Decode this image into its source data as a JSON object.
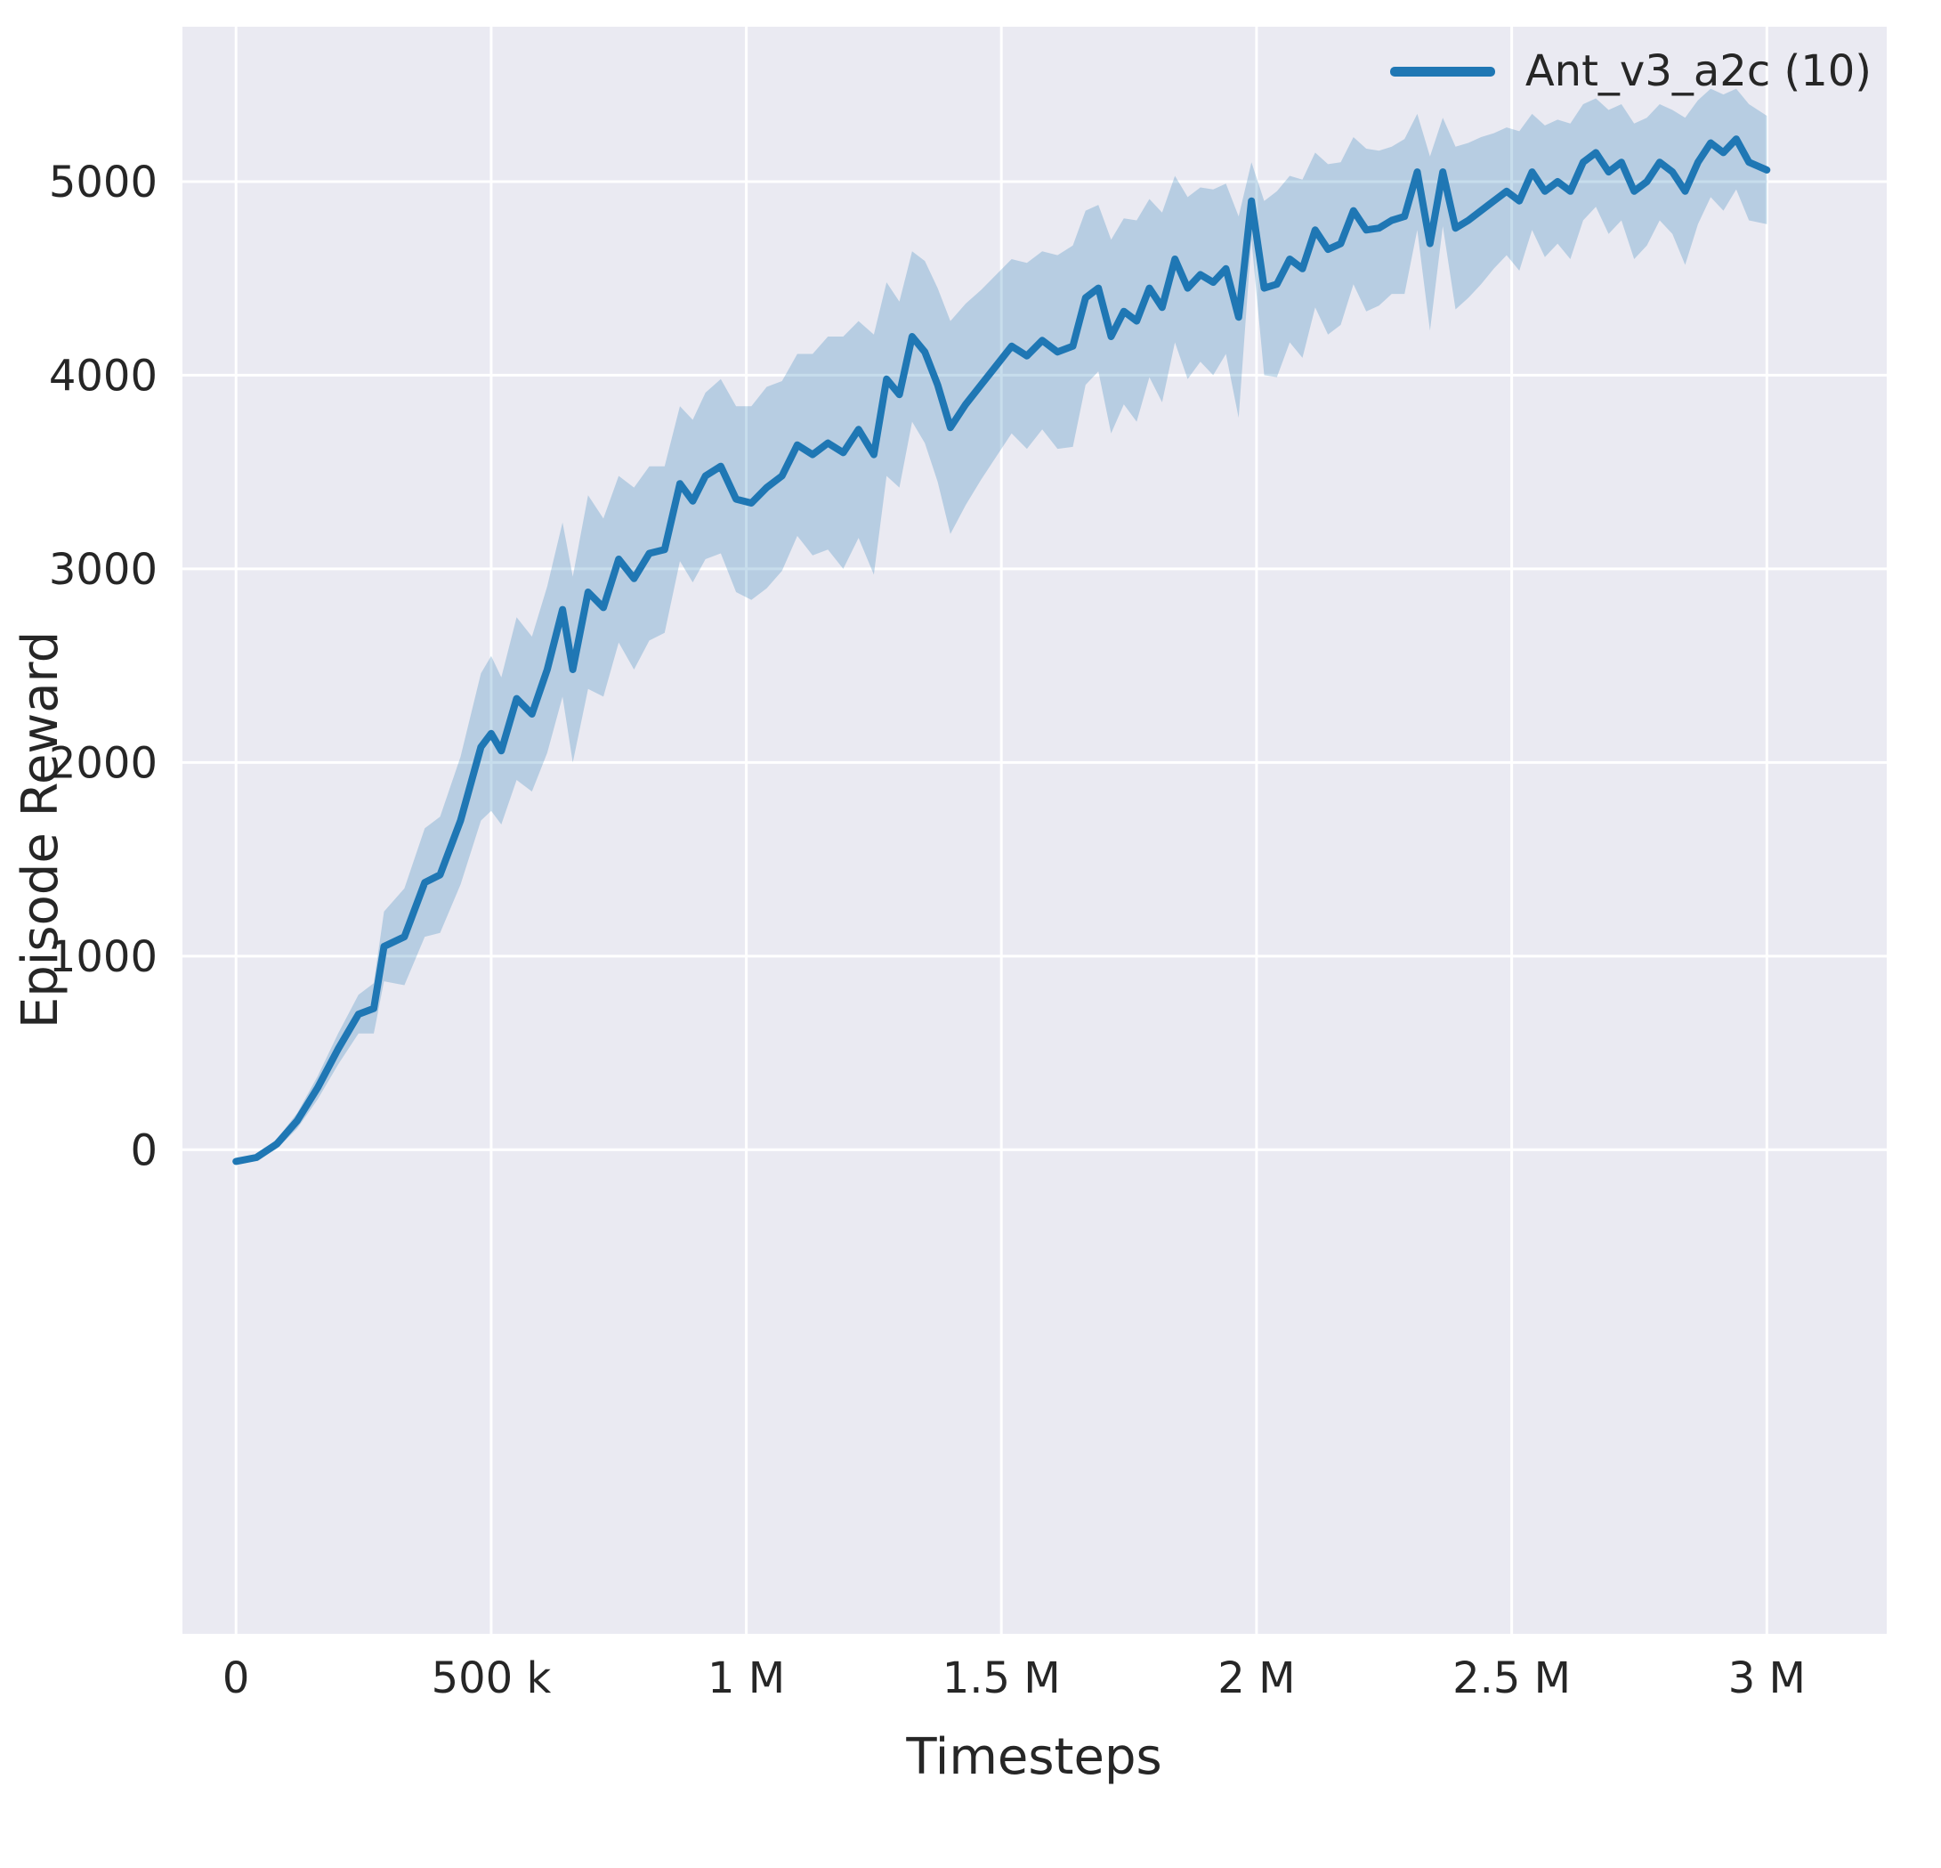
{
  "chart_data": {
    "type": "line",
    "title": "",
    "xlabel": "Timesteps",
    "ylabel": "Episode Reward",
    "grid": true,
    "legend_position": "upper right",
    "legend": [
      {
        "label": "Ant_v3_a2c (10)",
        "color": "#1f77b4"
      }
    ],
    "colors": {
      "plot_bg": "#eaeaf2",
      "grid": "#ffffff",
      "line": "#1f77b4",
      "band": "#1f77b4",
      "band_opacity": 0.25,
      "text": "#262626"
    },
    "xlim": [
      -105000,
      3235000
    ],
    "ylim": [
      -2500,
      5800
    ],
    "xticks": [
      {
        "v": 0,
        "label": "0"
      },
      {
        "v": 500000,
        "label": "500 k"
      },
      {
        "v": 1000000,
        "label": "1 M"
      },
      {
        "v": 1500000,
        "label": "1.5 M"
      },
      {
        "v": 2000000,
        "label": "2 M"
      },
      {
        "v": 2500000,
        "label": "2.5 M"
      },
      {
        "v": 3000000,
        "label": "3 M"
      }
    ],
    "yticks": [
      {
        "v": 0,
        "label": "0"
      },
      {
        "v": 1000,
        "label": "1000"
      },
      {
        "v": 2000,
        "label": "2000"
      },
      {
        "v": 3000,
        "label": "3000"
      },
      {
        "v": 4000,
        "label": "4000"
      },
      {
        "v": 5000,
        "label": "5000"
      }
    ],
    "series": [
      {
        "name": "Ant_v3_a2c (10)",
        "color": "#1f77b4",
        "x": [
          0,
          40000,
          80000,
          120000,
          160000,
          200000,
          240000,
          270000,
          290000,
          330000,
          370000,
          400000,
          440000,
          480000,
          500000,
          520000,
          550000,
          580000,
          610000,
          640000,
          660000,
          690000,
          720000,
          750000,
          780000,
          810000,
          840000,
          870000,
          895000,
          920000,
          950000,
          980000,
          1010000,
          1040000,
          1070000,
          1100000,
          1130000,
          1160000,
          1190000,
          1220000,
          1250000,
          1275000,
          1300000,
          1325000,
          1350000,
          1375000,
          1400000,
          1430000,
          1460000,
          1490000,
          1520000,
          1550000,
          1580000,
          1610000,
          1640000,
          1665000,
          1690000,
          1715000,
          1740000,
          1765000,
          1790000,
          1815000,
          1840000,
          1865000,
          1890000,
          1915000,
          1940000,
          1965000,
          1990000,
          2015000,
          2040000,
          2065000,
          2090000,
          2115000,
          2140000,
          2165000,
          2190000,
          2215000,
          2240000,
          2265000,
          2290000,
          2315000,
          2340000,
          2365000,
          2390000,
          2415000,
          2440000,
          2465000,
          2490000,
          2515000,
          2540000,
          2565000,
          2590000,
          2615000,
          2640000,
          2665000,
          2690000,
          2715000,
          2740000,
          2765000,
          2790000,
          2815000,
          2840000,
          2865000,
          2890000,
          2915000,
          2940000,
          2965000,
          3000000
        ],
        "mean": [
          -60,
          -40,
          30,
          150,
          320,
          520,
          700,
          730,
          1050,
          1100,
          1380,
          1420,
          1700,
          2080,
          2150,
          2060,
          2330,
          2250,
          2480,
          2790,
          2480,
          2880,
          2800,
          3050,
          2950,
          3080,
          3100,
          3440,
          3350,
          3480,
          3530,
          3360,
          3340,
          3420,
          3480,
          3640,
          3590,
          3650,
          3600,
          3720,
          3590,
          3980,
          3900,
          4200,
          4120,
          3950,
          3730,
          3850,
          3950,
          4050,
          4150,
          4100,
          4180,
          4120,
          4150,
          4400,
          4450,
          4200,
          4330,
          4280,
          4450,
          4350,
          4600,
          4450,
          4520,
          4480,
          4550,
          4300,
          4900,
          4450,
          4470,
          4600,
          4550,
          4750,
          4650,
          4680,
          4850,
          4750,
          4760,
          4800,
          4820,
          5050,
          4680,
          5050,
          4760,
          4800,
          4850,
          4900,
          4950,
          4900,
          5050,
          4950,
          5000,
          4950,
          5100,
          5150,
          5050,
          5100,
          4950,
          5000,
          5100,
          5050,
          4950,
          5100,
          5200,
          5150,
          5220,
          5100,
          5060
        ],
        "spread": [
          10,
          15,
          25,
          40,
          60,
          80,
          100,
          130,
          180,
          250,
          280,
          300,
          330,
          380,
          400,
          380,
          420,
          400,
          430,
          450,
          480,
          500,
          460,
          430,
          470,
          450,
          430,
          400,
          420,
          430,
          450,
          480,
          500,
          520,
          490,
          470,
          520,
          550,
          600,
          560,
          620,
          500,
          480,
          440,
          470,
          500,
          550,
          520,
          490,
          470,
          450,
          480,
          460,
          500,
          520,
          450,
          430,
          500,
          480,
          520,
          460,
          490,
          430,
          470,
          450,
          480,
          440,
          520,
          200,
          450,
          480,
          430,
          460,
          400,
          440,
          420,
          380,
          420,
          400,
          380,
          400,
          300,
          450,
          280,
          420,
          400,
          380,
          350,
          330,
          360,
          300,
          340,
          320,
          350,
          300,
          280,
          320,
          300,
          350,
          330,
          300,
          320,
          380,
          320,
          280,
          300,
          260,
          300,
          280
        ]
      }
    ]
  }
}
